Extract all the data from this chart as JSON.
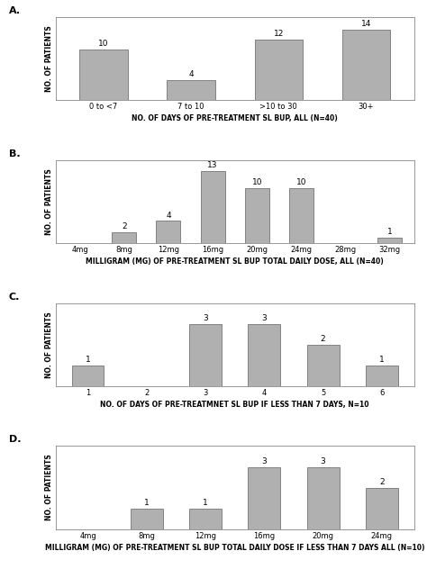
{
  "panel_A": {
    "label": "A.",
    "categories": [
      "0 to <7",
      "7 to 10",
      ">10 to 30",
      "30+"
    ],
    "values": [
      10,
      4,
      12,
      14
    ],
    "xlabel": "NO. OF DAYS OF PRE-TREATMENT SL BUP, ALL (N=40)",
    "ylabel": "NO. OF PATIENTS",
    "ylim": [
      0,
      16.5
    ]
  },
  "panel_B": {
    "label": "B.",
    "categories": [
      "4mg",
      "8mg",
      "12mg",
      "16mg",
      "20mg",
      "24mg",
      "28mg",
      "32mg"
    ],
    "values": [
      0,
      2,
      4,
      13,
      10,
      10,
      0,
      1
    ],
    "xlabel": "MILLIGRAM (MG) OF PRE-TREATMENT SL BUP TOTAL DAILY DOSE, ALL (N=40)",
    "ylabel": "NO. OF PATIENTS",
    "ylim": [
      0,
      15
    ]
  },
  "panel_C": {
    "label": "C.",
    "categories": [
      "1",
      "2",
      "3",
      "4",
      "5",
      "6"
    ],
    "values": [
      1,
      0,
      3,
      3,
      2,
      1
    ],
    "xlabel": "NO. OF DAYS OF PRE-TREATMNET SL BUP IF LESS THAN 7 DAYS, N=10",
    "ylabel": "NO. OF PATIENTS",
    "ylim": [
      0,
      4
    ]
  },
  "panel_D": {
    "label": "D.",
    "categories": [
      "4mg",
      "8mg",
      "12mg",
      "16mg",
      "20mg",
      "24mg"
    ],
    "values": [
      0,
      1,
      1,
      3,
      3,
      2
    ],
    "xlabel": "MILLIGRAM (MG) OF PRE-TREATMENT SL BUP TOTAL DAILY DOSE IF LESS THAN 7 DAYS ALL (N=10)",
    "ylabel": "NO. OF PATIENTS",
    "ylim": [
      0,
      4
    ]
  },
  "bar_color": "#b0b0b0",
  "bar_edgecolor": "#606060",
  "background_color": "#ffffff",
  "panel_bg": "#ffffff",
  "label_fontsize": 8,
  "xlabel_fontsize": 5.5,
  "ylabel_fontsize": 5.5,
  "tick_fontsize": 6,
  "value_fontsize": 6.5
}
